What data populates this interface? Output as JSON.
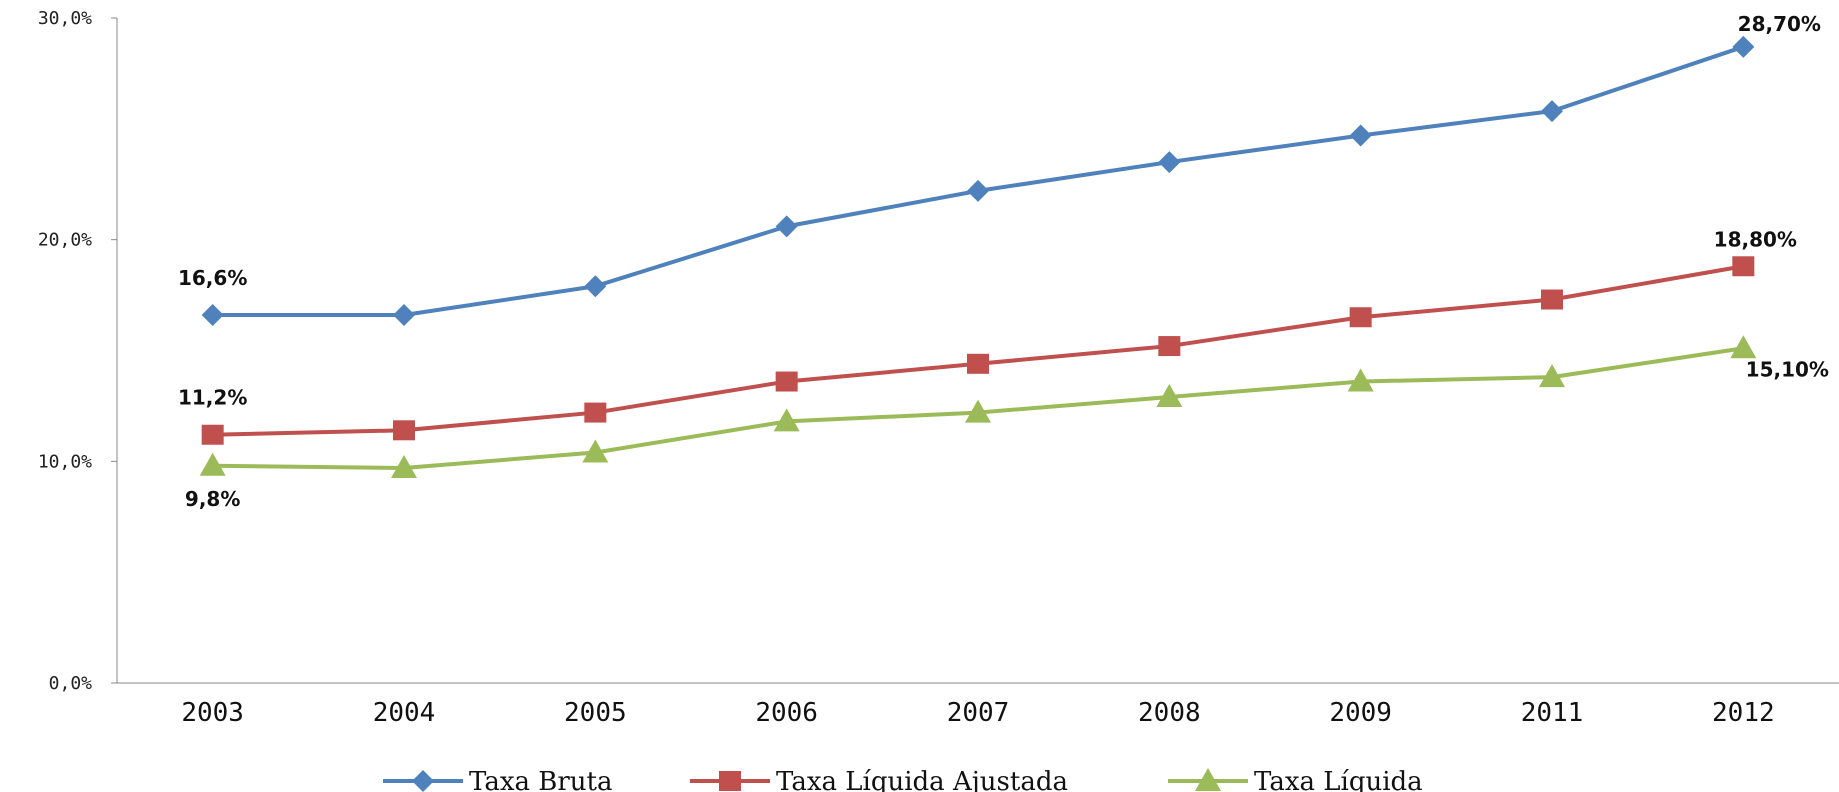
{
  "chart_data": {
    "type": "line",
    "title": "",
    "xlabel": "",
    "ylabel": "",
    "categories": [
      "2003",
      "2004",
      "2005",
      "2006",
      "2007",
      "2008",
      "2009",
      "2011",
      "2012"
    ],
    "ylim": [
      0,
      30
    ],
    "yticks": [
      "0,0%",
      "10,0%",
      "20,0%",
      "30,0%"
    ],
    "ytick_values": [
      0,
      10,
      20,
      30
    ],
    "grid": false,
    "legend_position": "bottom",
    "series": [
      {
        "name": "Taxa Bruta",
        "color": "#4F81BD",
        "marker": "diamond",
        "values": [
          16.6,
          16.6,
          17.9,
          20.6,
          22.2,
          23.5,
          24.7,
          25.8,
          28.7
        ]
      },
      {
        "name": "Taxa Líquida Ajustada",
        "color": "#C0504D",
        "marker": "square",
        "values": [
          11.2,
          11.4,
          12.2,
          13.6,
          14.4,
          15.2,
          16.5,
          17.3,
          18.8
        ]
      },
      {
        "name": "Taxa Líquida",
        "color": "#9BBB59",
        "marker": "triangle",
        "values": [
          9.8,
          9.7,
          10.4,
          11.8,
          12.2,
          12.9,
          13.6,
          13.8,
          15.1
        ]
      }
    ],
    "data_labels": [
      {
        "series": 0,
        "index": 0,
        "text": "16,6%"
      },
      {
        "series": 0,
        "index": 8,
        "text": "28,70%"
      },
      {
        "series": 1,
        "index": 0,
        "text": "11,2%"
      },
      {
        "series": 1,
        "index": 8,
        "text": "18,80%"
      },
      {
        "series": 2,
        "index": 0,
        "text": "9,8%"
      },
      {
        "series": 2,
        "index": 8,
        "text": "15,10%"
      }
    ]
  }
}
